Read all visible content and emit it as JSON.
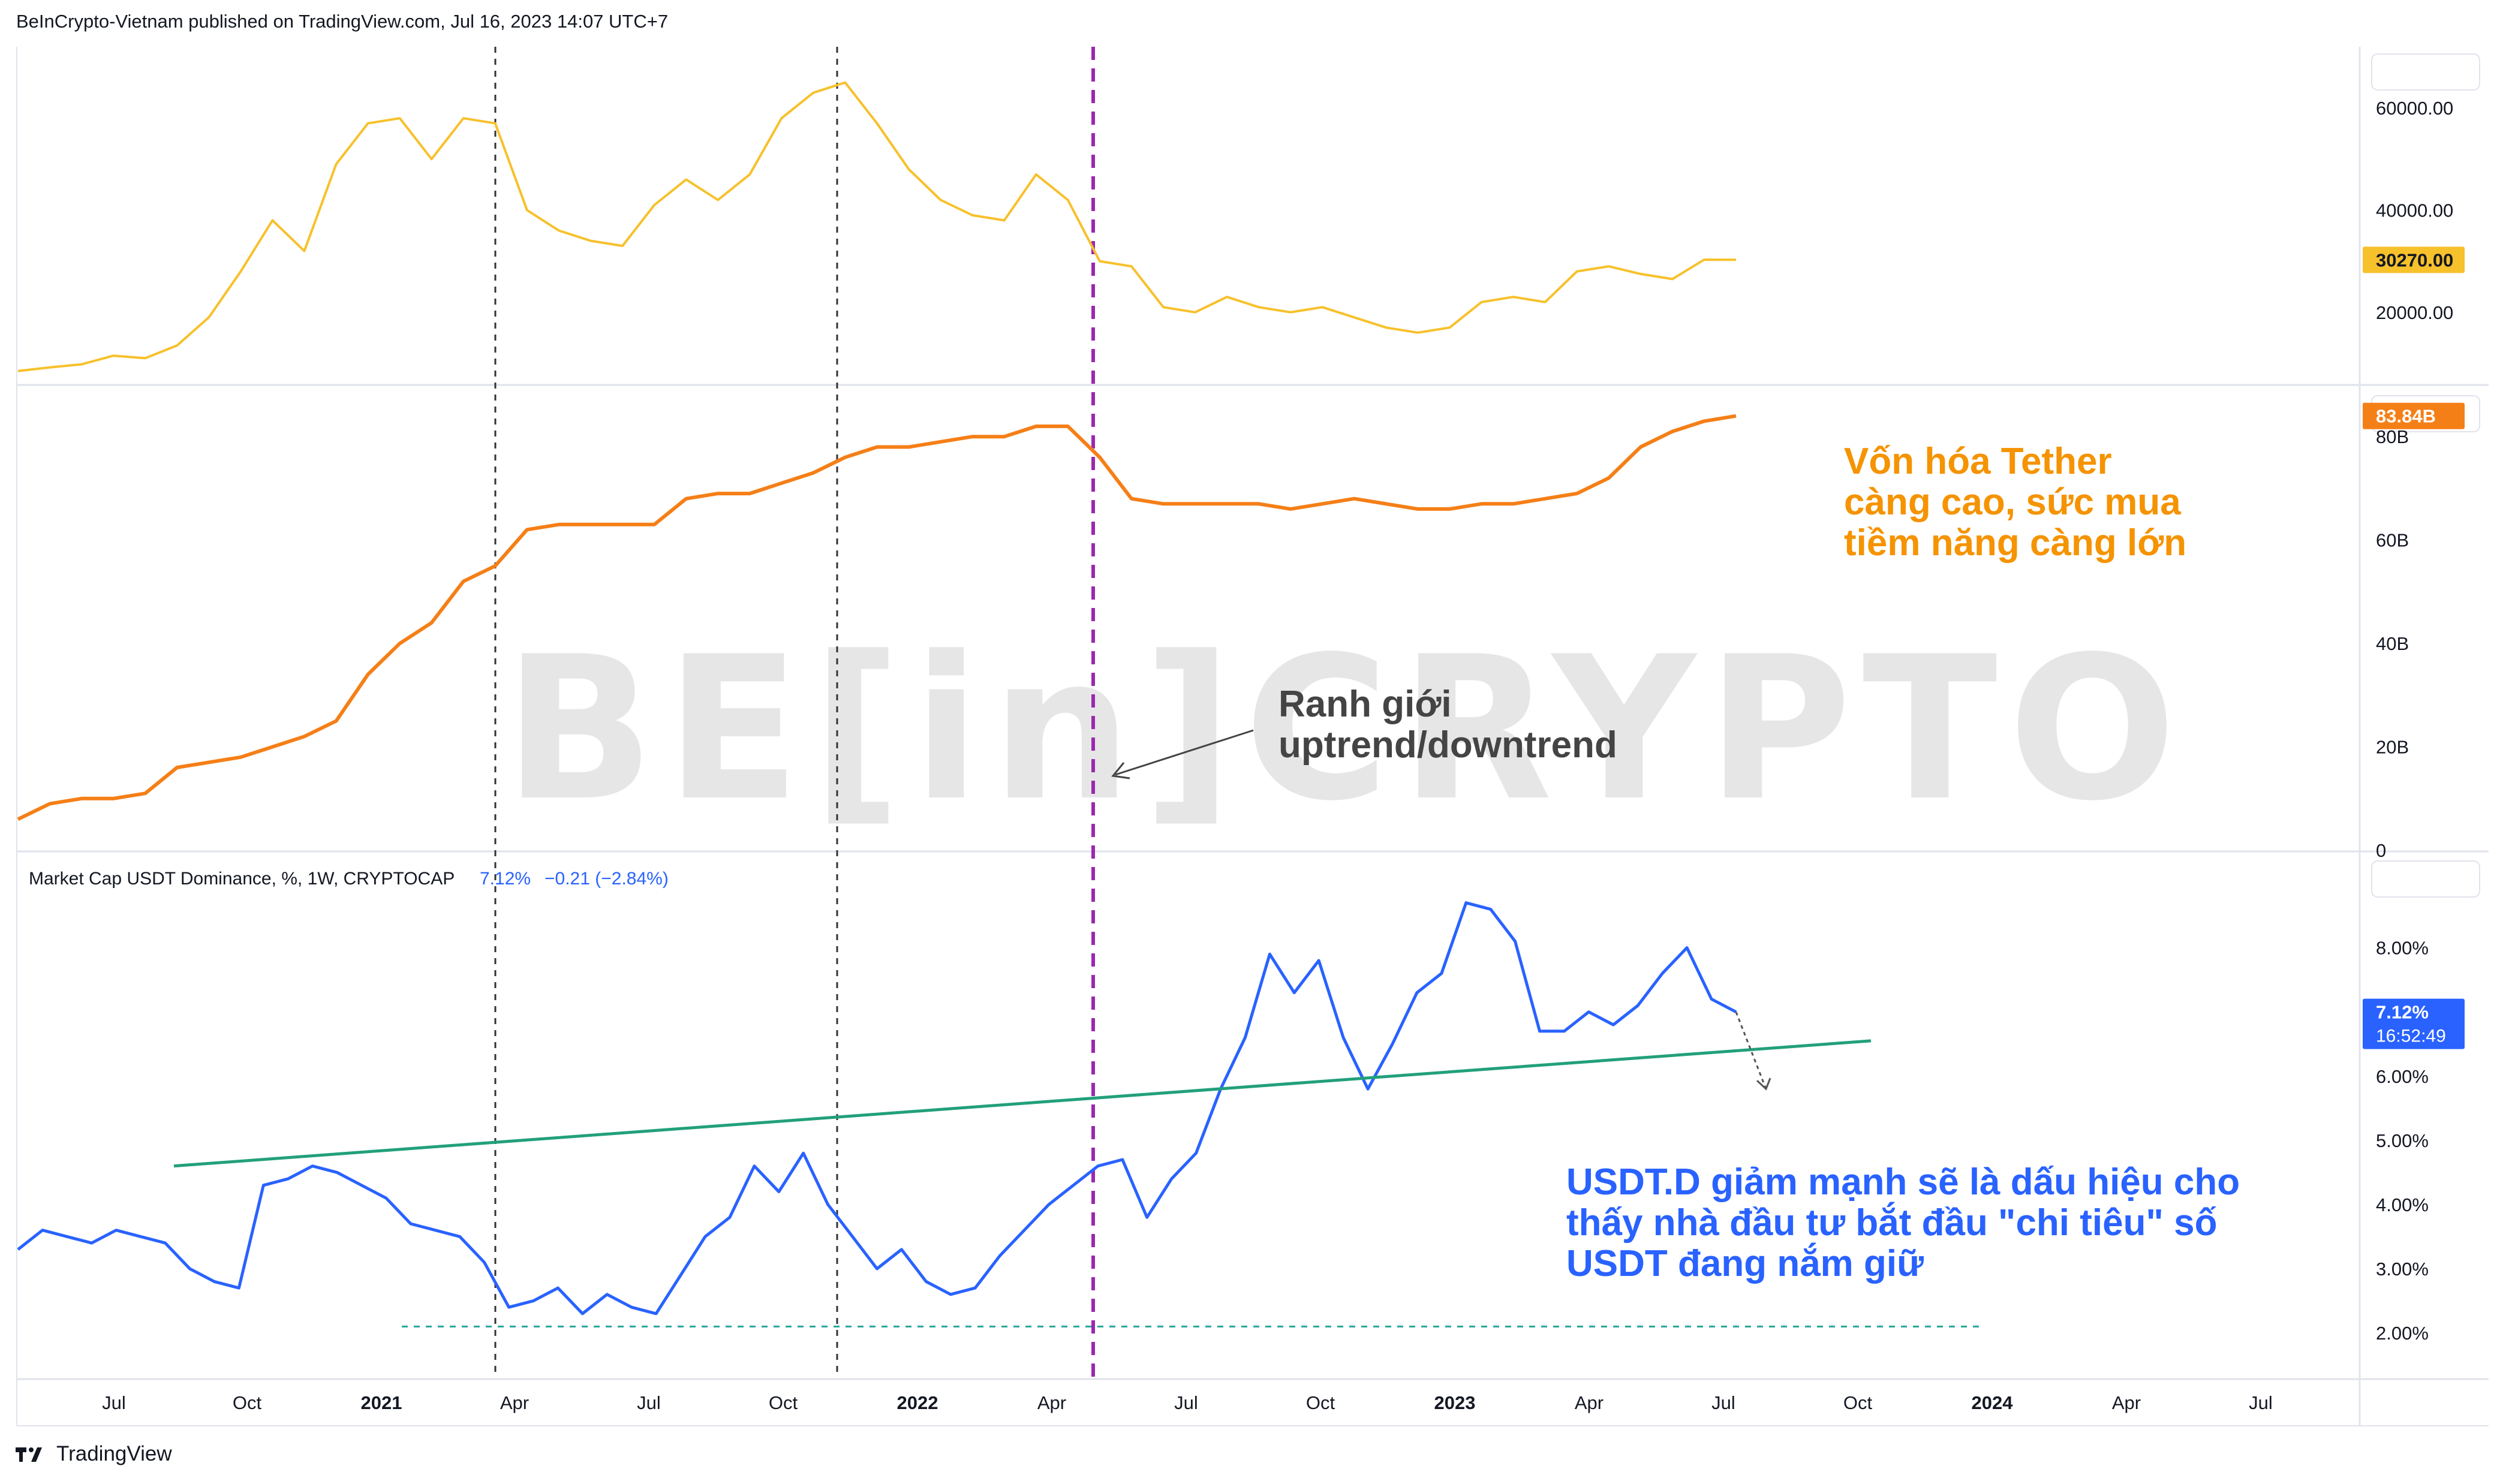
{
  "header": {
    "published_text": "BeInCrypto-Vietnam published on TradingView.com, Jul 16, 2023 14:07 UTC+7"
  },
  "footer": {
    "brand": "TradingView"
  },
  "watermark": "BE[in]CRYPTO",
  "colors": {
    "btc_line": "#f7c12c",
    "tether_line": "#f57f17",
    "usdt_line": "#2962ff",
    "trendline": "#22a07b",
    "support_line": "#26a69a",
    "annotation_orange": "#f59300",
    "annotation_blue": "#2962ff",
    "boundary_purple": "#9c27b0"
  },
  "chart_data": {
    "type": "line",
    "x_axis_labels": [
      "Jul",
      "Oct",
      "2021",
      "Apr",
      "Jul",
      "Oct",
      "2022",
      "Apr",
      "Jul",
      "Oct",
      "2023",
      "Apr",
      "Jul",
      "Oct",
      "2024",
      "Apr",
      "Jul"
    ],
    "panels": [
      {
        "id": "btc",
        "ylim": [
          6000,
          72000
        ],
        "y_ticks": [
          "60000.00",
          "40000.00",
          "20000.00"
        ],
        "y_tick_values": [
          60000,
          40000,
          20000
        ],
        "last_value_label": "30270.00",
        "series": [
          {
            "values": [
              8500,
              9200,
              9800,
              11500,
              11000,
              13500,
              19000,
              28000,
              38000,
              32000,
              49000,
              57000,
              58000,
              50000,
              58000,
              57000,
              40000,
              36000,
              34000,
              33000,
              41000,
              46000,
              42000,
              47000,
              58000,
              63000,
              65000,
              57000,
              48000,
              42000,
              39000,
              38000,
              47000,
              42000,
              30000,
              29000,
              21000,
              20000,
              23000,
              21000,
              20000,
              21000,
              19000,
              17000,
              16000,
              17000,
              22000,
              23000,
              22000,
              28000,
              29000,
              27500,
              26500,
              30300,
              30270
            ]
          }
        ]
      },
      {
        "id": "tether_marketcap",
        "ylim": [
          0,
          90
        ],
        "y_ticks": [
          "80B",
          "60B",
          "40B",
          "20B",
          "0"
        ],
        "y_tick_values": [
          80,
          60,
          40,
          20,
          0
        ],
        "last_value_label": "83.84B",
        "series": [
          {
            "values": [
              6,
              9,
              10,
              10,
              11,
              16,
              17,
              18,
              20,
              22,
              25,
              34,
              40,
              44,
              52,
              55,
              62,
              63,
              63,
              63,
              63,
              68,
              69,
              69,
              71,
              73,
              76,
              78,
              78,
              79,
              80,
              80,
              82,
              82,
              76,
              68,
              67,
              67,
              67,
              67,
              66,
              67,
              68,
              67,
              66,
              66,
              67,
              67,
              68,
              69,
              72,
              78,
              81,
              83,
              84
            ]
          }
        ]
      },
      {
        "id": "usdt_dominance",
        "title": "Market Cap USDT Dominance, %, 1W, CRYPTOCAP",
        "stats": {
          "value": "7.12%",
          "change": "−0.21 (−2.84%)"
        },
        "ylim": [
          1.3,
          9.5
        ],
        "y_ticks": [
          "8.00%",
          "6.00%",
          "5.00%",
          "4.00%",
          "3.00%",
          "2.00%"
        ],
        "y_tick_values": [
          8,
          6,
          5,
          4,
          3,
          2
        ],
        "last_value_label": "7.12%",
        "countdown": "16:52:49",
        "series": [
          {
            "values": [
              3.3,
              3.6,
              3.5,
              3.4,
              3.6,
              3.5,
              3.4,
              3.0,
              2.8,
              2.7,
              4.3,
              4.4,
              4.6,
              4.5,
              4.3,
              4.1,
              3.7,
              3.6,
              3.5,
              3.1,
              2.4,
              2.5,
              2.7,
              2.3,
              2.6,
              2.4,
              2.3,
              2.9,
              3.5,
              3.8,
              4.6,
              4.2,
              4.8,
              4.0,
              3.5,
              3.0,
              3.3,
              2.8,
              2.6,
              2.7,
              3.2,
              3.6,
              4.0,
              4.3,
              4.6,
              4.7,
              3.8,
              4.4,
              4.8,
              5.8,
              6.6,
              7.9,
              7.3,
              7.8,
              6.6,
              5.8,
              6.5,
              7.3,
              7.6,
              8.7,
              8.6,
              8.1,
              6.7,
              6.7,
              7.0,
              6.8,
              7.1,
              7.6,
              8.0,
              7.2,
              7.0
            ]
          }
        ]
      }
    ],
    "annotations": [
      {
        "text_lines": [
          "Vốn hóa Tether",
          "càng cao, sức mua",
          "tiềm năng càng lớn"
        ]
      },
      {
        "text_lines": [
          "Ranh giới",
          "uptrend/downtrend"
        ]
      },
      {
        "text_lines": [
          "USDT.D giảm mạnh sẽ là dấu hiệu cho",
          "thấy nhà đầu tư bắt đầu \"chi tiêu\" số",
          "USDT đang nắm giữ"
        ]
      }
    ]
  }
}
